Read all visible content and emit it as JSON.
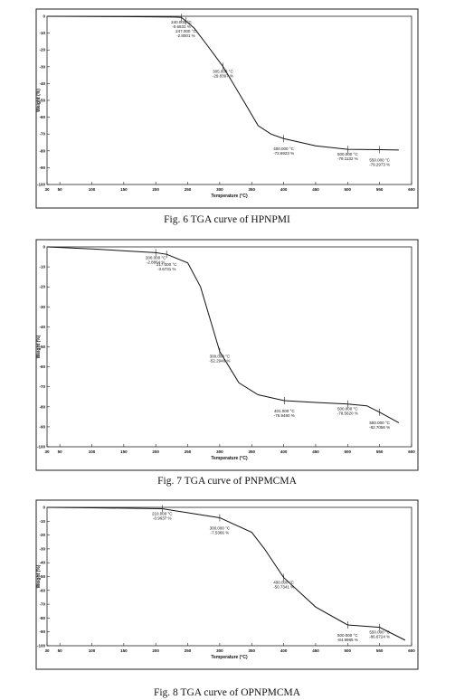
{
  "chart_data": [
    {
      "type": "line",
      "caption": "Fig. 6  TGA curve  of  HPNPMI",
      "xlabel": "Temperature (°C)",
      "ylabel": "Weight (%)",
      "color": "#111",
      "x": [
        30,
        150,
        230,
        240,
        247,
        260,
        280,
        305,
        340,
        360,
        380,
        400,
        450,
        500,
        550,
        580
      ],
      "values": [
        0,
        -0.2,
        -0.5,
        -0.65,
        -2.8,
        -7,
        -17,
        -29.8,
        -52,
        -65,
        -70,
        -72.7,
        -77,
        -79.1,
        -79.3,
        -79.5
      ],
      "xlim": [
        30,
        600
      ],
      "xticks": [
        30,
        50,
        100,
        150,
        200,
        250,
        300,
        350,
        400,
        450,
        500,
        550,
        600
      ],
      "ylim": [
        -100,
        0
      ],
      "yticks": [
        0,
        -10,
        -20,
        -30,
        -40,
        -50,
        -60,
        -70,
        -80,
        -90,
        -100
      ],
      "annotations": [
        {
          "x": 240,
          "y": -0.6531,
          "temp": "240.000 °C",
          "weight": "-0.6531 %"
        },
        {
          "x": 247,
          "y": -2.8001,
          "temp": "247.000 °C",
          "weight": "-2.8001 %"
        },
        {
          "x": 305,
          "y": -29.8397,
          "temp": "305.000 °C",
          "weight": "-29.8397 %"
        },
        {
          "x": 400,
          "y": -72.6923,
          "temp": "400.000 °C",
          "weight": "-72.6923 %"
        },
        {
          "x": 500,
          "y": -79.1132,
          "temp": "500.000 °C",
          "weight": "-79.1132 %"
        },
        {
          "x": 550,
          "y": -79.2973,
          "temp": "550.000 °C",
          "weight": "-79.2973 %"
        }
      ]
    },
    {
      "type": "line",
      "caption": "Fig. 7 TGA curve of  PNPMCMA",
      "xlabel": "Temperature (°C)",
      "ylabel": "Weight (%)",
      "color": "#111",
      "x": [
        30,
        100,
        200,
        217,
        250,
        270,
        300,
        330,
        360,
        401,
        450,
        500,
        530,
        550,
        580
      ],
      "values": [
        0,
        -1,
        -2.9,
        -3.7,
        -8,
        -20,
        -52.3,
        -68,
        -74,
        -76.9,
        -77.8,
        -78.6,
        -79.5,
        -82.7,
        -88
      ],
      "xlim": [
        30,
        600
      ],
      "xticks": [
        30,
        50,
        100,
        150,
        200,
        250,
        300,
        350,
        400,
        450,
        500,
        550,
        600
      ],
      "ylim": [
        -100,
        0
      ],
      "yticks": [
        0,
        -10,
        -20,
        -30,
        -40,
        -50,
        -60,
        -70,
        -80,
        -90,
        -100
      ],
      "annotations": [
        {
          "x": 200,
          "y": -2.8864,
          "temp": "200.000 °C",
          "weight": "-2.8864 %"
        },
        {
          "x": 217,
          "y": -3.6731,
          "temp": "217.000 °C",
          "weight": "-3.6731 %"
        },
        {
          "x": 300,
          "y": -52.2946,
          "temp": "300.000 °C",
          "weight": "-52.2946 %"
        },
        {
          "x": 401,
          "y": -76.949,
          "temp": "401.000 °C",
          "weight": "-76.9490 %"
        },
        {
          "x": 500,
          "y": -78.562,
          "temp": "500.000 °C",
          "weight": "-78.5620 %"
        },
        {
          "x": 550,
          "y": -82.7056,
          "temp": "550.000 °C",
          "weight": "-82.7056 %"
        }
      ]
    },
    {
      "type": "line",
      "caption": "Fig. 8  TGA curve of  OPNPMCMA",
      "xlabel": "Temperature (°C)",
      "ylabel": "Weight (%)",
      "color": "#111",
      "x": [
        30,
        100,
        210,
        300,
        350,
        370,
        400,
        450,
        500,
        550,
        590
      ],
      "values": [
        0,
        -0.3,
        -1,
        -7.5,
        -18,
        -30,
        -50.7,
        -72,
        -85,
        -86.7,
        -96
      ],
      "xlim": [
        30,
        600
      ],
      "xticks": [
        30,
        50,
        100,
        150,
        200,
        250,
        300,
        350,
        400,
        450,
        500,
        550,
        600
      ],
      "ylim": [
        -100,
        0
      ],
      "yticks": [
        0,
        -10,
        -20,
        -30,
        -40,
        -50,
        -60,
        -70,
        -80,
        -90,
        -100
      ],
      "annotations": [
        {
          "x": 210,
          "y": -0.9637,
          "temp": "210.000 °C",
          "weight": "-0.9637 %"
        },
        {
          "x": 300,
          "y": -7.5366,
          "temp": "300.000 °C",
          "weight": "-7.5366 %"
        },
        {
          "x": 400,
          "y": -50.7341,
          "temp": "400.000 °C",
          "weight": "-50.7341 %"
        },
        {
          "x": 500,
          "y": -84.9985,
          "temp": "500.000 °C",
          "weight": "-84.9985 %"
        },
        {
          "x": 550,
          "y": -86.6724,
          "temp": "550.000 °C",
          "weight": "-86.6724 %"
        }
      ]
    }
  ]
}
